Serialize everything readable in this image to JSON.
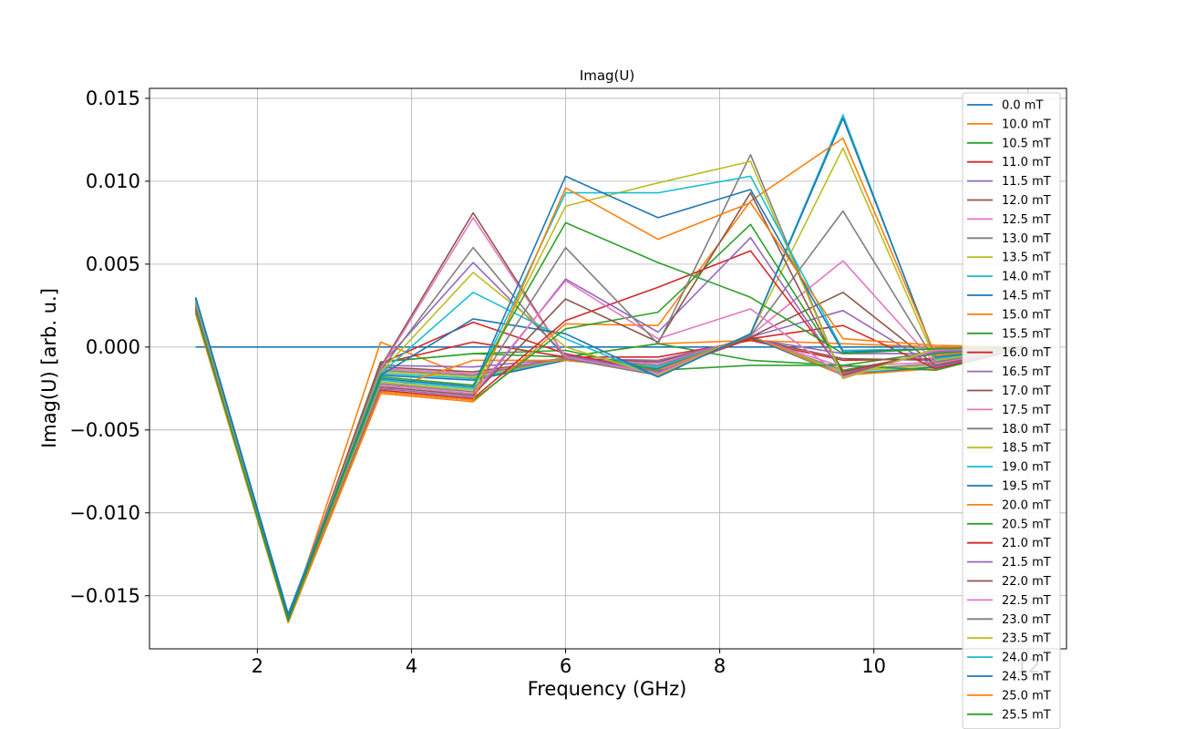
{
  "chart_data": {
    "type": "line",
    "title": "Imag(U)",
    "xlabel": "Frequency (GHz)",
    "ylabel": "Imag(U) [arb. u.]",
    "xlim": [
      0.6,
      12.5
    ],
    "ylim": [
      -0.0182,
      0.0156
    ],
    "xticks": [
      2,
      4,
      6,
      8,
      10,
      12
    ],
    "xtick_labels": [
      "2",
      "4",
      "6",
      "8",
      "10",
      "12"
    ],
    "yticks": [
      -0.015,
      -0.01,
      -0.005,
      0.0,
      0.005,
      0.01,
      0.015
    ],
    "ytick_labels": [
      "−0.015",
      "−0.010",
      "−0.005",
      "0.000",
      "0.005",
      "0.010",
      "0.015"
    ],
    "grid": true,
    "legend_position": "right",
    "x": [
      1.2,
      2.4,
      3.6,
      4.8,
      6.0,
      7.2,
      8.4,
      9.6,
      10.8,
      12.0
    ],
    "series": [
      {
        "name": "0.0 mT",
        "color": "#1f77b4",
        "values": [
          0.0,
          0.0,
          0.0,
          0.0,
          0.0,
          0.0,
          0.0,
          0.0,
          0.0,
          0.0
        ]
      },
      {
        "name": "10.0 mT",
        "color": "#ff7f0e",
        "values": [
          0.0021,
          -0.0165,
          0.0003,
          -0.0019,
          -0.0006,
          0.0002,
          0.0004,
          0.0002,
          0.0,
          0.0
        ]
      },
      {
        "name": "10.5 mT",
        "color": "#2ca02c",
        "values": [
          0.0022,
          -0.0164,
          -0.0009,
          -0.0004,
          -0.0006,
          0.0002,
          -0.0008,
          -0.0011,
          -0.0003,
          0.0
        ]
      },
      {
        "name": "11.0 mT",
        "color": "#d62728",
        "values": [
          0.0023,
          -0.0163,
          -0.001,
          0.0003,
          -0.0006,
          -0.0006,
          0.0004,
          -0.0008,
          -0.0007,
          0.0
        ]
      },
      {
        "name": "11.5 mT",
        "color": "#9467bd",
        "values": [
          0.0024,
          -0.0163,
          -0.0011,
          -0.0012,
          -0.0007,
          -0.0008,
          0.0005,
          -0.0004,
          -0.0004,
          0.0
        ]
      },
      {
        "name": "12.0 mT",
        "color": "#8c564b",
        "values": [
          0.0025,
          -0.0162,
          -0.0012,
          -0.0015,
          -0.0007,
          -0.0009,
          0.0005,
          -0.0007,
          -0.0008,
          0.0
        ]
      },
      {
        "name": "12.5 mT",
        "color": "#e377c2",
        "values": [
          0.0026,
          -0.0162,
          -0.0013,
          -0.0016,
          -0.0007,
          -0.001,
          0.0006,
          -0.0012,
          -0.0009,
          0.0
        ]
      },
      {
        "name": "13.0 mT",
        "color": "#7f7f7f",
        "values": [
          0.0027,
          -0.0162,
          -0.0014,
          -0.0017,
          -0.0007,
          -0.0011,
          0.0006,
          -0.0014,
          -0.001,
          0.0
        ]
      },
      {
        "name": "13.5 mT",
        "color": "#bcbd22",
        "values": [
          0.0028,
          -0.0162,
          -0.0015,
          -0.0018,
          -0.0008,
          -0.0012,
          0.0006,
          -0.0015,
          -0.0011,
          0.0
        ]
      },
      {
        "name": "14.0 mT",
        "color": "#17becf",
        "values": [
          0.0029,
          -0.0161,
          -0.0016,
          -0.0019,
          -0.0008,
          -0.0012,
          0.0006,
          -0.0016,
          -0.0012,
          0.0
        ]
      },
      {
        "name": "14.5 mT",
        "color": "#1f77b4",
        "values": [
          0.003,
          -0.0161,
          -0.0017,
          -0.002,
          -0.0008,
          -0.0013,
          0.0006,
          -0.0017,
          -0.0012,
          0.0
        ]
      },
      {
        "name": "15.0 mT",
        "color": "#ff7f0e",
        "values": [
          0.002,
          -0.0166,
          -0.0027,
          -0.0008,
          -0.0008,
          -0.0014,
          0.0007,
          -0.0017,
          -0.0013,
          0.0
        ]
      },
      {
        "name": "15.5 mT",
        "color": "#2ca02c",
        "values": [
          0.0021,
          -0.0166,
          -0.0009,
          -0.0004,
          -0.0002,
          -0.0014,
          -0.0011,
          -0.0011,
          -0.0014,
          0.0
        ]
      },
      {
        "name": "16.0 mT",
        "color": "#d62728",
        "values": [
          0.0022,
          -0.0165,
          -0.001,
          0.0015,
          -0.0004,
          -0.0015,
          0.0005,
          0.0013,
          -0.0013,
          0.0
        ]
      },
      {
        "name": "16.5 mT",
        "color": "#9467bd",
        "values": [
          0.0023,
          -0.0165,
          -0.0011,
          0.0051,
          -0.0005,
          -0.0015,
          0.0006,
          0.0022,
          -0.0012,
          0.0
        ]
      },
      {
        "name": "17.0 mT",
        "color": "#8c564b",
        "values": [
          0.0024,
          -0.0164,
          -0.0012,
          0.0081,
          -0.0006,
          -0.0016,
          0.0006,
          0.0033,
          -0.0011,
          0.0
        ]
      },
      {
        "name": "17.5 mT",
        "color": "#e377c2",
        "values": [
          0.0025,
          -0.0164,
          -0.0013,
          0.0078,
          -0.0006,
          -0.0016,
          0.0007,
          0.0052,
          -0.001,
          0.0
        ]
      },
      {
        "name": "18.0 mT",
        "color": "#7f7f7f",
        "values": [
          0.0026,
          -0.0164,
          -0.0014,
          0.006,
          -0.0007,
          -0.0017,
          0.0007,
          0.0082,
          -0.0009,
          0.0
        ]
      },
      {
        "name": "18.5 mT",
        "color": "#bcbd22",
        "values": [
          0.0027,
          -0.0163,
          -0.0015,
          0.0045,
          0.0,
          -0.0017,
          0.0008,
          0.012,
          -0.0008,
          0.0
        ]
      },
      {
        "name": "19.0 mT",
        "color": "#17becf",
        "values": [
          0.0028,
          -0.0163,
          -0.0016,
          0.0033,
          0.0005,
          -0.0018,
          0.0008,
          0.014,
          -0.0007,
          0.0
        ]
      },
      {
        "name": "19.5 mT",
        "color": "#1f77b4",
        "values": [
          0.0029,
          -0.0163,
          -0.0017,
          0.0017,
          0.0008,
          -0.0018,
          0.0008,
          0.0138,
          -0.0006,
          0.0
        ]
      },
      {
        "name": "20.0 mT",
        "color": "#ff7f0e",
        "values": [
          0.0021,
          -0.0166,
          -0.0028,
          -0.0033,
          0.0014,
          0.0013,
          0.0088,
          0.0126,
          -0.0005,
          0.0
        ]
      },
      {
        "name": "20.5 mT",
        "color": "#2ca02c",
        "values": [
          0.0022,
          -0.0166,
          -0.0027,
          -0.0032,
          0.0011,
          0.0021,
          0.0074,
          -0.0014,
          -0.0004,
          0.0
        ]
      },
      {
        "name": "21.0 mT",
        "color": "#d62728",
        "values": [
          0.0023,
          -0.0165,
          -0.0026,
          -0.0031,
          0.0016,
          0.0036,
          0.0058,
          -0.0015,
          -0.0003,
          0.0
        ]
      },
      {
        "name": "21.5 mT",
        "color": "#9467bd",
        "values": [
          0.0024,
          -0.0165,
          -0.0025,
          -0.003,
          0.0041,
          0.0009,
          0.0066,
          -0.0016,
          -0.0003,
          0.0
        ]
      },
      {
        "name": "22.0 mT",
        "color": "#8c564b",
        "values": [
          0.0025,
          -0.0165,
          -0.0024,
          -0.0029,
          0.0029,
          0.0003,
          0.0093,
          -0.0017,
          -0.0002,
          0.0
        ]
      },
      {
        "name": "22.5 mT",
        "color": "#e377c2",
        "values": [
          0.0026,
          -0.0164,
          -0.0023,
          -0.0028,
          0.004,
          0.0005,
          0.0023,
          -0.0018,
          -0.0002,
          0.0
        ]
      },
      {
        "name": "23.0 mT",
        "color": "#7f7f7f",
        "values": [
          0.0027,
          -0.0164,
          -0.0022,
          -0.0027,
          0.006,
          0.0002,
          0.0116,
          -0.0019,
          -0.0001,
          0.0
        ]
      },
      {
        "name": "23.5 mT",
        "color": "#bcbd22",
        "values": [
          0.0028,
          -0.0164,
          -0.0021,
          -0.0026,
          0.0085,
          0.0099,
          0.0112,
          -0.0019,
          -0.0001,
          0.0
        ]
      },
      {
        "name": "24.0 mT",
        "color": "#17becf",
        "values": [
          0.0029,
          -0.0163,
          -0.002,
          -0.0025,
          0.0093,
          0.0093,
          0.0103,
          -0.0002,
          -0.0001,
          0.0
        ]
      },
      {
        "name": "24.5 mT",
        "color": "#1f77b4",
        "values": [
          0.003,
          -0.0163,
          -0.0019,
          -0.0024,
          0.0103,
          0.0078,
          0.0095,
          -0.0003,
          -0.0001,
          0.0
        ]
      },
      {
        "name": "25.0 mT",
        "color": "#ff7f0e",
        "values": [
          0.0021,
          -0.0166,
          -0.0027,
          -0.0032,
          0.0096,
          0.0065,
          0.0087,
          0.0005,
          0.0001,
          0.0
        ]
      },
      {
        "name": "25.5 mT",
        "color": "#2ca02c",
        "values": [
          0.0022,
          -0.0165,
          -0.0018,
          -0.0023,
          0.0075,
          0.0051,
          0.003,
          -0.0004,
          -0.0001,
          0.0
        ]
      }
    ]
  }
}
